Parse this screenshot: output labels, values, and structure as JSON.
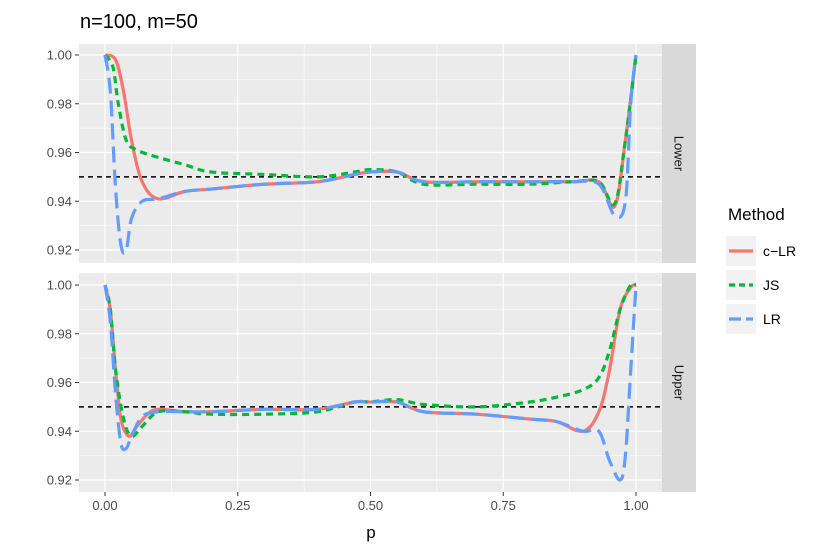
{
  "chart_data": {
    "type": "line",
    "title": "n=100, m=50",
    "xlabel": "p",
    "ylabel": "",
    "xlim": [
      0,
      1
    ],
    "ylim": [
      0.915,
      1.0
    ],
    "x_ticks": [
      0.0,
      0.25,
      0.5,
      0.75,
      1.0
    ],
    "x_tick_labels": [
      "0.00",
      "0.25",
      "0.50",
      "0.75",
      "1.00"
    ],
    "y_ticks": [
      0.92,
      0.94,
      0.96,
      0.98,
      1.0
    ],
    "y_tick_labels": [
      "0.92",
      "0.94",
      "0.96",
      "0.98",
      "1.00"
    ],
    "reference_line": 0.95,
    "legend": {
      "title": "Method",
      "position": "right"
    },
    "panel_background": "#ebebeb",
    "grid": true,
    "panels": [
      {
        "label": "Lower",
        "series": [
          {
            "name": "c−LR",
            "color": "#F8766D",
            "dash": "solid",
            "x": [
              0.0,
              0.02,
              0.035,
              0.05,
              0.07,
              0.1,
              0.15,
              0.2,
              0.3,
              0.4,
              0.47,
              0.5,
              0.55,
              0.6,
              0.7,
              0.8,
              0.88,
              0.93,
              0.96,
              0.98,
              1.0
            ],
            "y": [
              1.0,
              0.998,
              0.985,
              0.965,
              0.948,
              0.941,
              0.944,
              0.945,
              0.947,
              0.948,
              0.951,
              0.952,
              0.952,
              0.948,
              0.948,
              0.948,
              0.948,
              0.948,
              0.938,
              0.965,
              1.0
            ]
          },
          {
            "name": "JS",
            "color": "#00BA38",
            "dash": "dashed",
            "x": [
              0.0,
              0.015,
              0.025,
              0.04,
              0.06,
              0.1,
              0.15,
              0.2,
              0.3,
              0.4,
              0.47,
              0.5,
              0.55,
              0.6,
              0.7,
              0.8,
              0.88,
              0.93,
              0.96,
              0.98,
              1.0
            ],
            "y": [
              1.0,
              0.995,
              0.98,
              0.965,
              0.961,
              0.958,
              0.955,
              0.952,
              0.951,
              0.95,
              0.952,
              0.953,
              0.952,
              0.947,
              0.947,
              0.947,
              0.948,
              0.948,
              0.939,
              0.965,
              1.0
            ]
          },
          {
            "name": "LR",
            "color": "#619CFF",
            "dash": "longdash",
            "x": [
              0.0,
              0.01,
              0.02,
              0.03,
              0.04,
              0.05,
              0.07,
              0.1,
              0.15,
              0.2,
              0.3,
              0.4,
              0.47,
              0.5,
              0.55,
              0.6,
              0.7,
              0.8,
              0.88,
              0.93,
              0.96,
              0.98,
              0.99,
              1.0
            ],
            "y": [
              1.0,
              0.985,
              0.945,
              0.922,
              0.92,
              0.933,
              0.94,
              0.941,
              0.944,
              0.945,
              0.947,
              0.948,
              0.951,
              0.952,
              0.952,
              0.948,
              0.948,
              0.948,
              0.948,
              0.947,
              0.934,
              0.94,
              0.98,
              1.0
            ]
          }
        ]
      },
      {
        "label": "Upper",
        "series": [
          {
            "name": "c−LR",
            "color": "#F8766D",
            "dash": "solid",
            "x": [
              0.0,
              0.01,
              0.02,
              0.03,
              0.045,
              0.06,
              0.08,
              0.1,
              0.15,
              0.2,
              0.3,
              0.4,
              0.47,
              0.5,
              0.55,
              0.6,
              0.7,
              0.8,
              0.85,
              0.9,
              0.93,
              0.95,
              0.97,
              0.99,
              1.0
            ],
            "y": [
              1.0,
              0.99,
              0.965,
              0.945,
              0.938,
              0.942,
              0.947,
              0.949,
              0.948,
              0.948,
              0.949,
              0.949,
              0.952,
              0.952,
              0.952,
              0.948,
              0.947,
              0.945,
              0.944,
              0.94,
              0.948,
              0.965,
              0.99,
              0.999,
              1.0
            ]
          },
          {
            "name": "JS",
            "color": "#00BA38",
            "dash": "dashed",
            "x": [
              0.0,
              0.01,
              0.02,
              0.035,
              0.05,
              0.07,
              0.1,
              0.15,
              0.2,
              0.3,
              0.4,
              0.47,
              0.5,
              0.55,
              0.6,
              0.7,
              0.8,
              0.85,
              0.9,
              0.93,
              0.95,
              0.97,
              0.99,
              1.0
            ],
            "y": [
              1.0,
              0.99,
              0.965,
              0.945,
              0.938,
              0.942,
              0.948,
              0.948,
              0.947,
              0.947,
              0.948,
              0.952,
              0.952,
              0.953,
              0.951,
              0.95,
              0.952,
              0.954,
              0.957,
              0.962,
              0.973,
              0.99,
              1.0,
              1.0
            ]
          },
          {
            "name": "LR",
            "color": "#619CFF",
            "dash": "longdash",
            "x": [
              0.0,
              0.01,
              0.02,
              0.03,
              0.04,
              0.05,
              0.07,
              0.1,
              0.15,
              0.2,
              0.3,
              0.4,
              0.47,
              0.5,
              0.55,
              0.6,
              0.7,
              0.8,
              0.85,
              0.9,
              0.93,
              0.95,
              0.97,
              0.98,
              0.99,
              1.0
            ],
            "y": [
              1.0,
              0.985,
              0.955,
              0.935,
              0.933,
              0.938,
              0.946,
              0.948,
              0.948,
              0.948,
              0.949,
              0.949,
              0.952,
              0.952,
              0.952,
              0.948,
              0.947,
              0.945,
              0.944,
              0.94,
              0.94,
              0.928,
              0.92,
              0.93,
              0.965,
              1.0
            ]
          }
        ]
      }
    ]
  }
}
